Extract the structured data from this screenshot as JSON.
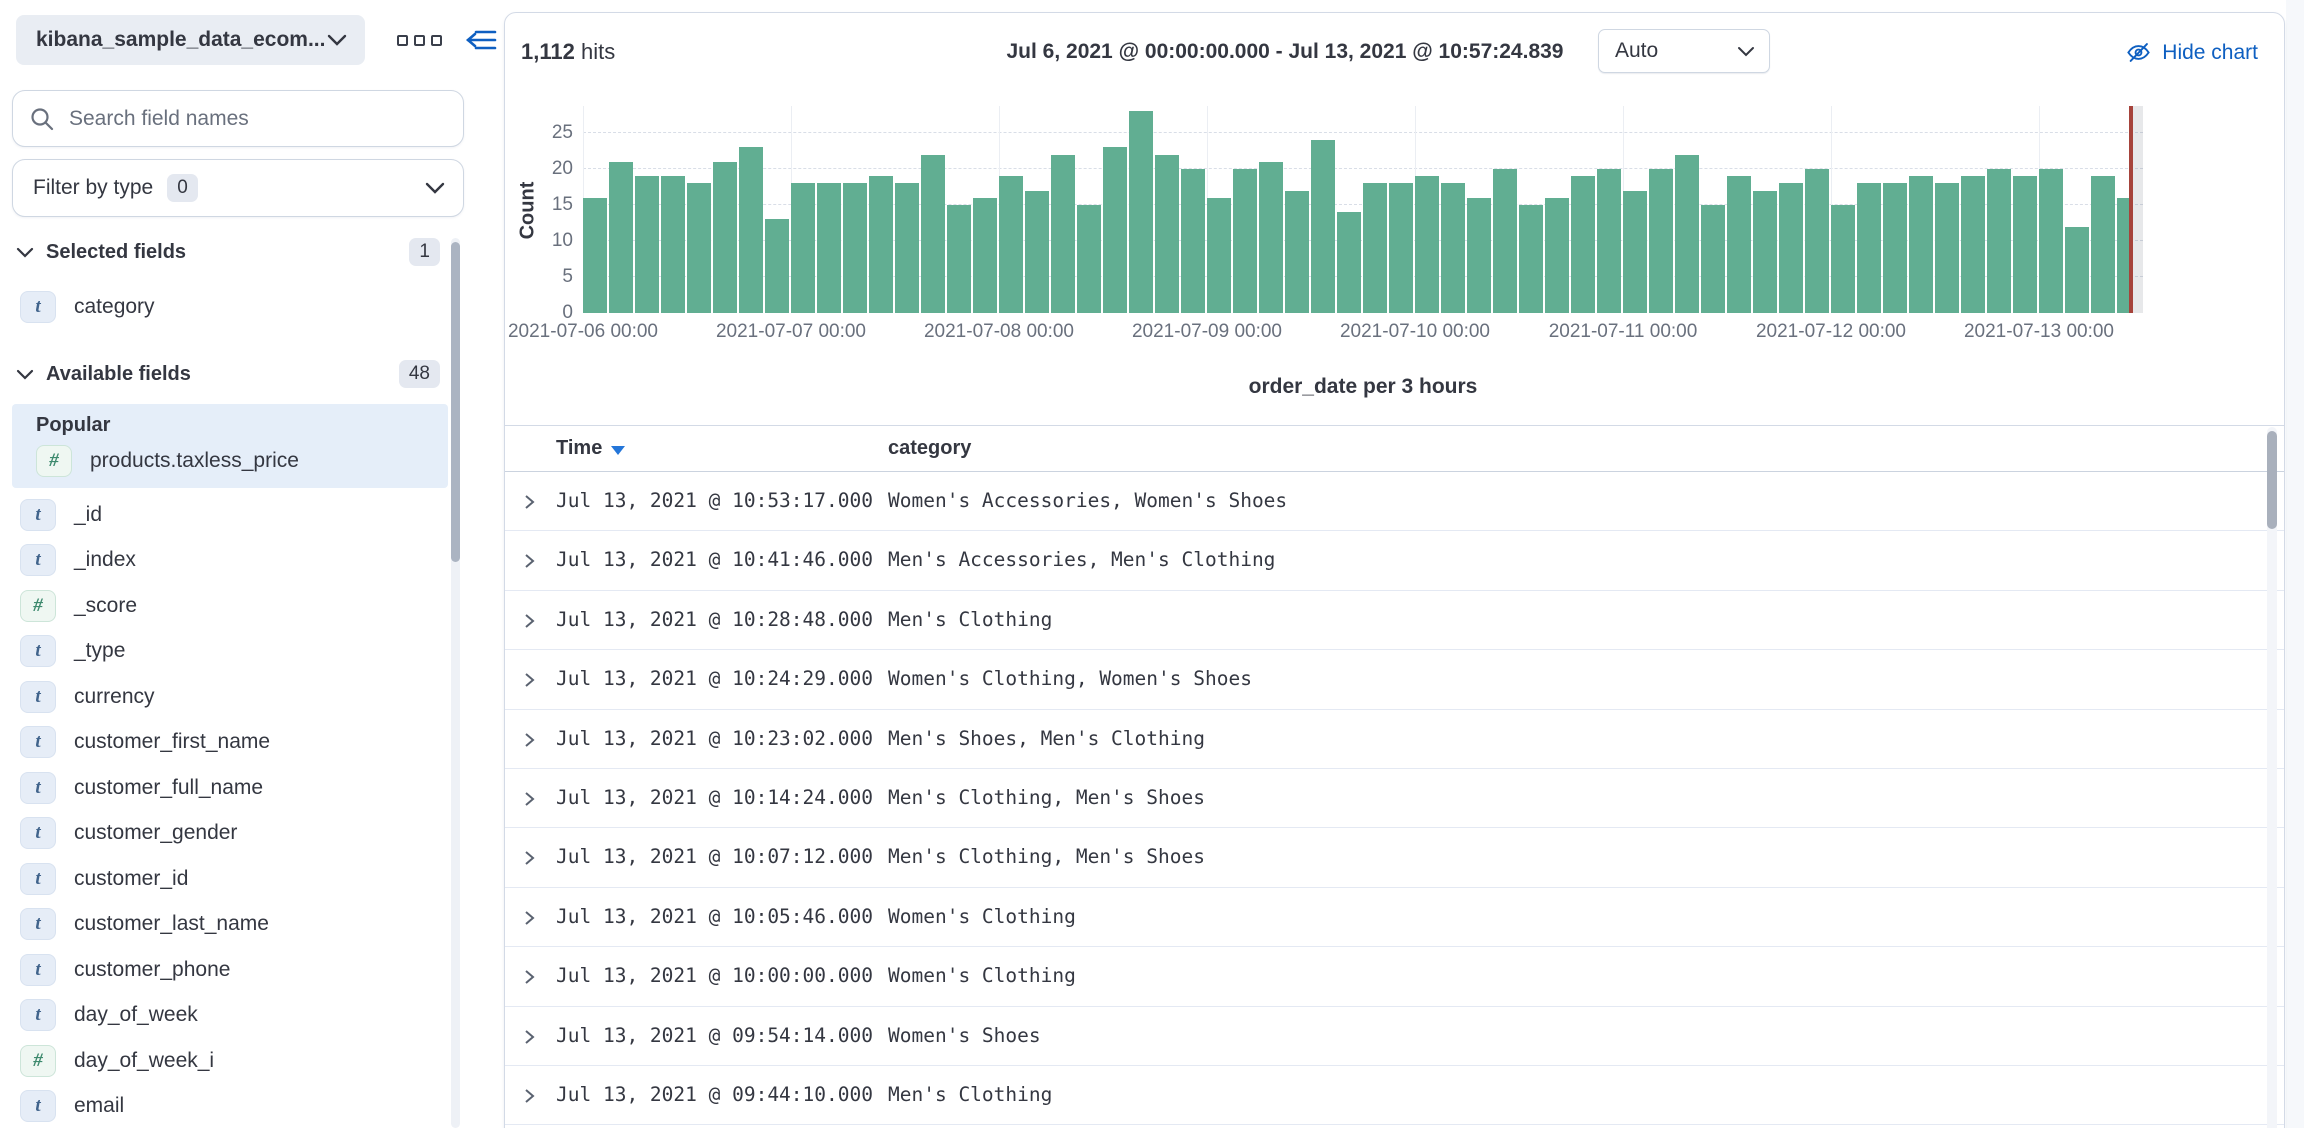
{
  "colors": {
    "accent_link": "#0E5FC1",
    "bar_green": "#61AE92",
    "time_marker_red": "#A6433B",
    "text_dark": "#343741",
    "text_subdued": "#69707D"
  },
  "sidebar": {
    "index_pattern": "kibana_sample_data_ecom...",
    "search_placeholder": "Search field names",
    "filter_by_type": {
      "label": "Filter by type",
      "count": "0"
    },
    "selected_fields": {
      "label": "Selected fields",
      "count": "1",
      "items": [
        {
          "type": "t",
          "name": "category"
        }
      ]
    },
    "available_fields": {
      "label": "Available fields",
      "count": "48"
    },
    "popular": {
      "label": "Popular",
      "items": [
        {
          "type": "#",
          "name": "products.taxless_price"
        }
      ]
    },
    "fields": [
      {
        "type": "t",
        "name": "_id"
      },
      {
        "type": "t",
        "name": "_index"
      },
      {
        "type": "#",
        "name": "_score"
      },
      {
        "type": "t",
        "name": "_type"
      },
      {
        "type": "t",
        "name": "currency"
      },
      {
        "type": "t",
        "name": "customer_first_name"
      },
      {
        "type": "t",
        "name": "customer_full_name"
      },
      {
        "type": "t",
        "name": "customer_gender"
      },
      {
        "type": "t",
        "name": "customer_id"
      },
      {
        "type": "t",
        "name": "customer_last_name"
      },
      {
        "type": "t",
        "name": "customer_phone"
      },
      {
        "type": "t",
        "name": "day_of_week"
      },
      {
        "type": "#",
        "name": "day_of_week_i"
      },
      {
        "type": "t",
        "name": "email"
      }
    ]
  },
  "header": {
    "hits_value": "1,112",
    "hits_label": "hits",
    "date_range": "Jul 6, 2021 @ 00:00:00.000 - Jul 13, 2021 @ 10:57:24.839",
    "interval": "Auto",
    "hide_chart_label": "Hide chart"
  },
  "chart_data": {
    "type": "bar",
    "title": "order_date per 3 hours",
    "ylabel": "Count",
    "bucket_interval_hours": 3,
    "ylim": [
      0,
      25
    ],
    "y_ticks": [
      0,
      5,
      10,
      15,
      20,
      25
    ],
    "x_ticks": [
      "2021-07-06 00:00",
      "2021-07-07 00:00",
      "2021-07-08 00:00",
      "2021-07-09 00:00",
      "2021-07-10 00:00",
      "2021-07-11 00:00",
      "2021-07-12 00:00",
      "2021-07-13 00:00"
    ],
    "values": [
      16,
      21,
      19,
      19,
      18,
      21,
      23,
      13,
      18,
      18,
      18,
      19,
      18,
      22,
      15,
      16,
      19,
      17,
      22,
      15,
      23,
      28,
      22,
      20,
      16,
      20,
      21,
      17,
      24,
      14,
      18,
      18,
      19,
      18,
      16,
      20,
      15,
      16,
      19,
      20,
      17,
      20,
      22,
      15,
      19,
      17,
      18,
      20,
      15,
      18,
      18,
      19,
      18,
      19,
      20,
      19,
      20,
      12,
      19,
      16
    ],
    "total_hits": 1112,
    "current_time_marker": "Jul 13, 2021 @ 10:57"
  },
  "table": {
    "columns": {
      "time": "Time",
      "category": "category"
    },
    "rows": [
      {
        "time": "Jul 13, 2021 @ 10:53:17.000",
        "category": "Women's Accessories, Women's Shoes"
      },
      {
        "time": "Jul 13, 2021 @ 10:41:46.000",
        "category": "Men's Accessories, Men's Clothing"
      },
      {
        "time": "Jul 13, 2021 @ 10:28:48.000",
        "category": "Men's Clothing"
      },
      {
        "time": "Jul 13, 2021 @ 10:24:29.000",
        "category": "Women's Clothing, Women's Shoes"
      },
      {
        "time": "Jul 13, 2021 @ 10:23:02.000",
        "category": "Men's Shoes, Men's Clothing"
      },
      {
        "time": "Jul 13, 2021 @ 10:14:24.000",
        "category": "Men's Clothing, Men's Shoes"
      },
      {
        "time": "Jul 13, 2021 @ 10:07:12.000",
        "category": "Men's Clothing, Men's Shoes"
      },
      {
        "time": "Jul 13, 2021 @ 10:05:46.000",
        "category": "Women's Clothing"
      },
      {
        "time": "Jul 13, 2021 @ 10:00:00.000",
        "category": "Women's Clothing"
      },
      {
        "time": "Jul 13, 2021 @ 09:54:14.000",
        "category": "Women's Shoes"
      },
      {
        "time": "Jul 13, 2021 @ 09:44:10.000",
        "category": "Men's Clothing"
      }
    ]
  }
}
